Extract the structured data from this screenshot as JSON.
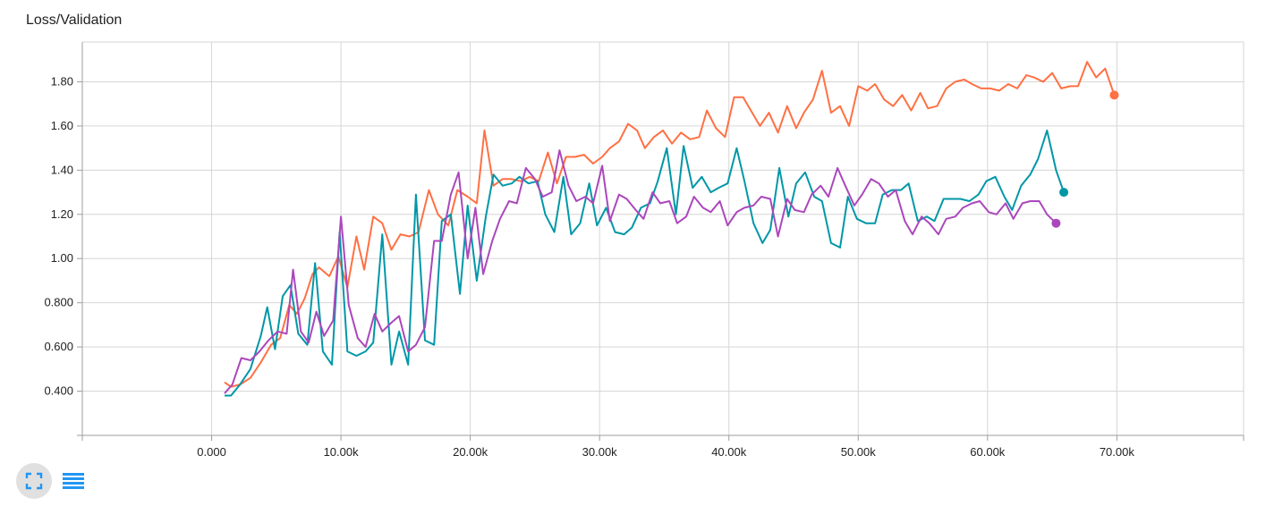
{
  "header": {
    "title": "Loss/Validation"
  },
  "toolbar": {
    "items": [
      {
        "icon": "fullscreen-icon",
        "active": true
      },
      {
        "icon": "data-list-icon",
        "active": false
      }
    ],
    "accent_color": "#2196f3"
  },
  "chart_data": {
    "type": "line",
    "title": "Loss/Validation",
    "xlabel": "",
    "ylabel": "",
    "xlim": [
      -10000,
      79800
    ],
    "ylim": [
      0.2,
      1.98
    ],
    "x_ticks": [
      0,
      10000,
      20000,
      30000,
      40000,
      50000,
      60000,
      70000
    ],
    "x_tick_labels": [
      "0.000",
      "10.00k",
      "20.00k",
      "30.00k",
      "40.00k",
      "50.00k",
      "60.00k",
      "70.00k"
    ],
    "y_ticks": [
      0.4,
      0.6,
      0.8,
      1.0,
      1.2,
      1.4,
      1.6,
      1.8
    ],
    "y_tick_labels": [
      "0.400",
      "0.600",
      "0.800",
      "1.00",
      "1.20",
      "1.40",
      "1.60",
      "1.80"
    ],
    "grid": true,
    "legend": "none",
    "series": [
      {
        "color": "#ff7043",
        "points": [
          [
            1000,
            0.44
          ],
          [
            1500,
            0.42
          ],
          [
            2200,
            0.43
          ],
          [
            3000,
            0.46
          ],
          [
            3800,
            0.53
          ],
          [
            4600,
            0.61
          ],
          [
            5300,
            0.64
          ],
          [
            6000,
            0.79
          ],
          [
            6600,
            0.75
          ],
          [
            7200,
            0.82
          ],
          [
            7800,
            0.93
          ],
          [
            8300,
            0.96
          ],
          [
            9100,
            0.92
          ],
          [
            9800,
            1.01
          ],
          [
            10500,
            0.87
          ],
          [
            11200,
            1.1
          ],
          [
            11800,
            0.95
          ],
          [
            12500,
            1.19
          ],
          [
            13200,
            1.16
          ],
          [
            13900,
            1.04
          ],
          [
            14600,
            1.11
          ],
          [
            15300,
            1.1
          ],
          [
            16000,
            1.12
          ],
          [
            16800,
            1.31
          ],
          [
            17500,
            1.2
          ],
          [
            18300,
            1.15
          ],
          [
            19000,
            1.31
          ],
          [
            19800,
            1.28
          ],
          [
            20500,
            1.25
          ],
          [
            21100,
            1.58
          ],
          [
            21800,
            1.33
          ],
          [
            22500,
            1.36
          ],
          [
            23200,
            1.36
          ],
          [
            23900,
            1.35
          ],
          [
            24600,
            1.37
          ],
          [
            25300,
            1.35
          ],
          [
            26000,
            1.48
          ],
          [
            26700,
            1.34
          ],
          [
            27400,
            1.46
          ],
          [
            28100,
            1.46
          ],
          [
            28800,
            1.47
          ],
          [
            29500,
            1.43
          ],
          [
            30200,
            1.46
          ],
          [
            30800,
            1.5
          ],
          [
            31500,
            1.53
          ],
          [
            32200,
            1.61
          ],
          [
            32900,
            1.58
          ],
          [
            33500,
            1.5
          ],
          [
            34200,
            1.55
          ],
          [
            34900,
            1.58
          ],
          [
            35600,
            1.52
          ],
          [
            36300,
            1.57
          ],
          [
            37000,
            1.54
          ],
          [
            37700,
            1.55
          ],
          [
            38300,
            1.67
          ],
          [
            39000,
            1.59
          ],
          [
            39700,
            1.55
          ],
          [
            40400,
            1.73
          ],
          [
            41100,
            1.73
          ],
          [
            41700,
            1.67
          ],
          [
            42400,
            1.6
          ],
          [
            43100,
            1.66
          ],
          [
            43800,
            1.57
          ],
          [
            44500,
            1.69
          ],
          [
            45200,
            1.59
          ],
          [
            45800,
            1.66
          ],
          [
            46500,
            1.72
          ],
          [
            47200,
            1.85
          ],
          [
            47900,
            1.66
          ],
          [
            48600,
            1.69
          ],
          [
            49300,
            1.6
          ],
          [
            50000,
            1.78
          ],
          [
            50700,
            1.76
          ],
          [
            51300,
            1.79
          ],
          [
            52000,
            1.72
          ],
          [
            52700,
            1.69
          ],
          [
            53400,
            1.74
          ],
          [
            54100,
            1.67
          ],
          [
            54800,
            1.75
          ],
          [
            55400,
            1.68
          ],
          [
            56100,
            1.69
          ],
          [
            56800,
            1.77
          ],
          [
            57500,
            1.8
          ],
          [
            58200,
            1.81
          ],
          [
            58800,
            1.79
          ],
          [
            59500,
            1.77
          ],
          [
            60200,
            1.77
          ],
          [
            60900,
            1.76
          ],
          [
            61600,
            1.79
          ],
          [
            62300,
            1.77
          ],
          [
            63000,
            1.83
          ],
          [
            63600,
            1.82
          ],
          [
            64300,
            1.8
          ],
          [
            65000,
            1.84
          ],
          [
            65700,
            1.77
          ],
          [
            66400,
            1.78
          ],
          [
            67000,
            1.78
          ],
          [
            67700,
            1.89
          ],
          [
            68400,
            1.82
          ],
          [
            69100,
            1.86
          ],
          [
            69800,
            1.74
          ]
        ]
      },
      {
        "color": "#0097a7",
        "points": [
          [
            1000,
            0.38
          ],
          [
            1500,
            0.38
          ],
          [
            2200,
            0.43
          ],
          [
            3000,
            0.5
          ],
          [
            3800,
            0.65
          ],
          [
            4300,
            0.78
          ],
          [
            4900,
            0.59
          ],
          [
            5500,
            0.83
          ],
          [
            6100,
            0.88
          ],
          [
            6700,
            0.66
          ],
          [
            7400,
            0.61
          ],
          [
            8000,
            0.98
          ],
          [
            8600,
            0.58
          ],
          [
            9300,
            0.52
          ],
          [
            9900,
            1.12
          ],
          [
            10500,
            0.58
          ],
          [
            11200,
            0.56
          ],
          [
            11900,
            0.58
          ],
          [
            12500,
            0.62
          ],
          [
            13200,
            1.11
          ],
          [
            13900,
            0.52
          ],
          [
            14500,
            0.67
          ],
          [
            15200,
            0.52
          ],
          [
            15800,
            1.29
          ],
          [
            16500,
            0.63
          ],
          [
            17200,
            0.61
          ],
          [
            17800,
            1.17
          ],
          [
            18500,
            1.2
          ],
          [
            19200,
            0.84
          ],
          [
            19800,
            1.24
          ],
          [
            20500,
            0.9
          ],
          [
            21200,
            1.19
          ],
          [
            21800,
            1.38
          ],
          [
            22500,
            1.33
          ],
          [
            23200,
            1.34
          ],
          [
            23800,
            1.37
          ],
          [
            24500,
            1.34
          ],
          [
            25200,
            1.35
          ],
          [
            25800,
            1.2
          ],
          [
            26500,
            1.12
          ],
          [
            27200,
            1.37
          ],
          [
            27800,
            1.11
          ],
          [
            28500,
            1.16
          ],
          [
            29200,
            1.34
          ],
          [
            29800,
            1.15
          ],
          [
            30500,
            1.23
          ],
          [
            31200,
            1.12
          ],
          [
            31900,
            1.11
          ],
          [
            32500,
            1.14
          ],
          [
            33200,
            1.23
          ],
          [
            33900,
            1.25
          ],
          [
            34500,
            1.35
          ],
          [
            35200,
            1.5
          ],
          [
            35900,
            1.2
          ],
          [
            36500,
            1.51
          ],
          [
            37200,
            1.32
          ],
          [
            37900,
            1.37
          ],
          [
            38600,
            1.3
          ],
          [
            39200,
            1.32
          ],
          [
            39900,
            1.34
          ],
          [
            40600,
            1.5
          ],
          [
            41200,
            1.35
          ],
          [
            41900,
            1.16
          ],
          [
            42600,
            1.07
          ],
          [
            43200,
            1.13
          ],
          [
            43900,
            1.41
          ],
          [
            44600,
            1.19
          ],
          [
            45200,
            1.34
          ],
          [
            45900,
            1.39
          ],
          [
            46600,
            1.28
          ],
          [
            47200,
            1.26
          ],
          [
            47900,
            1.07
          ],
          [
            48600,
            1.05
          ],
          [
            49200,
            1.28
          ],
          [
            49900,
            1.18
          ],
          [
            50600,
            1.16
          ],
          [
            51300,
            1.16
          ],
          [
            51900,
            1.29
          ],
          [
            52600,
            1.31
          ],
          [
            53300,
            1.31
          ],
          [
            53900,
            1.34
          ],
          [
            54600,
            1.17
          ],
          [
            55300,
            1.19
          ],
          [
            55900,
            1.17
          ],
          [
            56600,
            1.27
          ],
          [
            57300,
            1.27
          ],
          [
            57900,
            1.27
          ],
          [
            58600,
            1.26
          ],
          [
            59300,
            1.29
          ],
          [
            59900,
            1.35
          ],
          [
            60600,
            1.37
          ],
          [
            61300,
            1.28
          ],
          [
            61900,
            1.22
          ],
          [
            62600,
            1.33
          ],
          [
            63300,
            1.38
          ],
          [
            63900,
            1.45
          ],
          [
            64600,
            1.58
          ],
          [
            65300,
            1.4
          ],
          [
            65900,
            1.3
          ]
        ]
      },
      {
        "color": "#ab47bc",
        "points": [
          [
            1000,
            0.39
          ],
          [
            1600,
            0.43
          ],
          [
            2300,
            0.55
          ],
          [
            3000,
            0.54
          ],
          [
            3700,
            0.58
          ],
          [
            4400,
            0.63
          ],
          [
            5100,
            0.67
          ],
          [
            5800,
            0.66
          ],
          [
            6300,
            0.95
          ],
          [
            6900,
            0.67
          ],
          [
            7500,
            0.62
          ],
          [
            8100,
            0.76
          ],
          [
            8700,
            0.65
          ],
          [
            9400,
            0.72
          ],
          [
            10000,
            1.19
          ],
          [
            10600,
            0.79
          ],
          [
            11300,
            0.64
          ],
          [
            11900,
            0.6
          ],
          [
            12600,
            0.75
          ],
          [
            13200,
            0.67
          ],
          [
            13900,
            0.71
          ],
          [
            14500,
            0.74
          ],
          [
            15200,
            0.58
          ],
          [
            15800,
            0.61
          ],
          [
            16500,
            0.69
          ],
          [
            17200,
            1.08
          ],
          [
            17800,
            1.08
          ],
          [
            18500,
            1.29
          ],
          [
            19100,
            1.39
          ],
          [
            19800,
            1.0
          ],
          [
            20400,
            1.23
          ],
          [
            21000,
            0.93
          ],
          [
            21700,
            1.08
          ],
          [
            22300,
            1.18
          ],
          [
            23000,
            1.26
          ],
          [
            23600,
            1.25
          ],
          [
            24300,
            1.41
          ],
          [
            25000,
            1.36
          ],
          [
            25600,
            1.28
          ],
          [
            26300,
            1.3
          ],
          [
            26900,
            1.49
          ],
          [
            27600,
            1.33
          ],
          [
            28200,
            1.26
          ],
          [
            28900,
            1.28
          ],
          [
            29500,
            1.25
          ],
          [
            30200,
            1.42
          ],
          [
            30800,
            1.17
          ],
          [
            31500,
            1.29
          ],
          [
            32100,
            1.27
          ],
          [
            32800,
            1.22
          ],
          [
            33400,
            1.18
          ],
          [
            34100,
            1.3
          ],
          [
            34700,
            1.25
          ],
          [
            35400,
            1.26
          ],
          [
            36000,
            1.16
          ],
          [
            36700,
            1.19
          ],
          [
            37300,
            1.28
          ],
          [
            38000,
            1.23
          ],
          [
            38600,
            1.21
          ],
          [
            39300,
            1.26
          ],
          [
            39900,
            1.15
          ],
          [
            40600,
            1.21
          ],
          [
            41200,
            1.23
          ],
          [
            41900,
            1.24
          ],
          [
            42500,
            1.28
          ],
          [
            43200,
            1.27
          ],
          [
            43800,
            1.1
          ],
          [
            44500,
            1.27
          ],
          [
            45100,
            1.22
          ],
          [
            45800,
            1.21
          ],
          [
            46400,
            1.29
          ],
          [
            47100,
            1.33
          ],
          [
            47700,
            1.28
          ],
          [
            48400,
            1.41
          ],
          [
            49000,
            1.33
          ],
          [
            49700,
            1.24
          ],
          [
            50300,
            1.29
          ],
          [
            51000,
            1.36
          ],
          [
            51600,
            1.34
          ],
          [
            52300,
            1.28
          ],
          [
            52900,
            1.31
          ],
          [
            53600,
            1.17
          ],
          [
            54200,
            1.11
          ],
          [
            54900,
            1.19
          ],
          [
            55500,
            1.16
          ],
          [
            56200,
            1.11
          ],
          [
            56800,
            1.18
          ],
          [
            57500,
            1.19
          ],
          [
            58100,
            1.23
          ],
          [
            58800,
            1.25
          ],
          [
            59400,
            1.26
          ],
          [
            60100,
            1.21
          ],
          [
            60700,
            1.2
          ],
          [
            61400,
            1.25
          ],
          [
            62000,
            1.18
          ],
          [
            62700,
            1.25
          ],
          [
            63300,
            1.26
          ],
          [
            64000,
            1.26
          ],
          [
            64600,
            1.2
          ],
          [
            65300,
            1.16
          ]
        ]
      }
    ]
  }
}
